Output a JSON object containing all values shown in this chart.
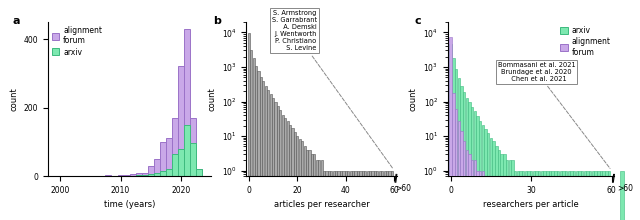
{
  "panel_a": {
    "label": "a",
    "alignment_years": [
      2006,
      2007,
      2008,
      2009,
      2010,
      2011,
      2012,
      2013,
      2014,
      2015,
      2016,
      2017,
      2018,
      2019,
      2020,
      2021,
      2022,
      2023
    ],
    "alignment_counts": [
      1,
      1,
      2,
      1,
      2,
      3,
      5,
      10,
      10,
      30,
      50,
      100,
      110,
      170,
      320,
      430,
      170,
      20
    ],
    "arxiv_years": [
      2012,
      2013,
      2014,
      2015,
      2016,
      2017,
      2018,
      2019,
      2020,
      2021,
      2022,
      2023
    ],
    "arxiv_counts": [
      1,
      2,
      3,
      5,
      10,
      15,
      20,
      65,
      80,
      150,
      95,
      20
    ],
    "alignment_color": "#9b72c8",
    "alignment_face": "#c9a8e8",
    "arxiv_color": "#3dba7e",
    "arxiv_face": "#7de8b0",
    "xlabel": "time (years)",
    "ylabel": "count",
    "xlim": [
      1998,
      2025
    ],
    "ylim": [
      0,
      450
    ],
    "yticks": [
      0,
      200,
      400
    ],
    "xticks": [
      2000,
      2010,
      2020
    ]
  },
  "panel_b": {
    "label": "b",
    "counts_per_bin": [
      9500,
      3200,
      1800,
      1100,
      750,
      500,
      380,
      280,
      210,
      170,
      130,
      95,
      72,
      55,
      42,
      33,
      27,
      21,
      17,
      13,
      10,
      8,
      7,
      5,
      4,
      4,
      3,
      3,
      2,
      2,
      2,
      1,
      1,
      1,
      1,
      1,
      1,
      1,
      1,
      1,
      1,
      1,
      1,
      1,
      1,
      1,
      1,
      1,
      1,
      1,
      1,
      1,
      1,
      1,
      1,
      1,
      1,
      1,
      1,
      1
    ],
    "outlier_count": 6,
    "bar_color": "#aaaaaa",
    "bar_edge": "#555555",
    "xlabel": "articles per researcher",
    "ylabel": "count",
    "annotation_text": "S. Armstrong\nS. Garrabrant\n  A. Demski\nJ. Wentworth\nP. Christiano\n  S. Levine",
    "ylim_log": [
      0.7,
      20000
    ],
    "main_xlim": 61,
    "outlier_xlim": 63.5
  },
  "panel_c": {
    "label": "c",
    "arxiv_counts_per_bin": [
      4500,
      1800,
      850,
      480,
      290,
      190,
      130,
      95,
      70,
      52,
      38,
      28,
      21,
      16,
      12,
      9,
      7,
      5,
      4,
      3,
      3,
      2,
      2,
      2,
      1,
      1,
      1,
      1,
      1,
      1,
      1,
      1,
      1,
      1,
      1,
      1,
      1,
      1,
      1,
      1,
      1,
      1,
      1,
      1,
      1,
      1,
      1,
      1,
      1,
      1,
      1,
      1,
      1,
      1,
      1,
      1,
      1,
      1,
      1,
      1
    ],
    "forum_counts_per_bin": [
      7500,
      180,
      60,
      28,
      14,
      7,
      4,
      3,
      2,
      2,
      1,
      1,
      1,
      0,
      0,
      0,
      0,
      0,
      0,
      0,
      0,
      0,
      0,
      0,
      0,
      0,
      0,
      0,
      0,
      0,
      0,
      0,
      0,
      0,
      0,
      0,
      0,
      0,
      0,
      0,
      0,
      0,
      0,
      0,
      0,
      0,
      0,
      0,
      0,
      0,
      0,
      0,
      0,
      0,
      0,
      0,
      0,
      0,
      0,
      0
    ],
    "arxiv_outlier_count": 1,
    "arxiv_color": "#3dba7e",
    "arxiv_face": "#7de8b0",
    "forum_color": "#9b72c8",
    "forum_face": "#c9a8e8",
    "xlabel": "researchers per article",
    "ylabel": "count",
    "annotation_text": "Bommasani et al. 2021\nBrundage et al. 2020\n  Chen et al. 2021",
    "ylim_log": [
      0.7,
      20000
    ],
    "main_xlim": 61,
    "outlier_xlim": 65
  }
}
